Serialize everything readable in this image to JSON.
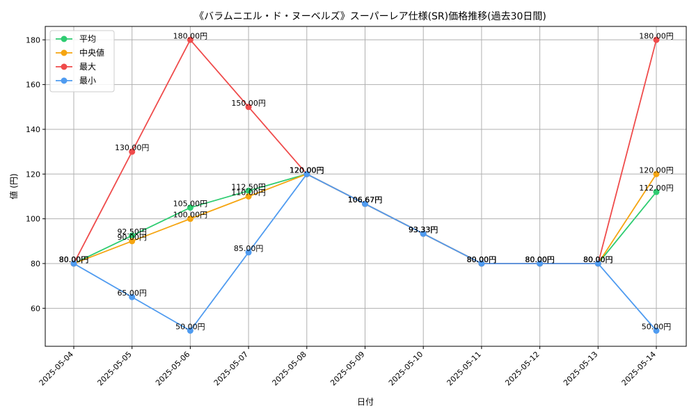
{
  "chart_data": {
    "type": "line",
    "title": "《バラムニエル・ド・ヌーベルズ》スーパーレア仕様(SR)価格推移(過去30日間)",
    "xlabel": "日付",
    "ylabel": "値 (円)",
    "ylim": [
      43,
      186
    ],
    "yticks": [
      60,
      80,
      100,
      120,
      140,
      160,
      180
    ],
    "grid": true,
    "legend_position": "top-left",
    "value_suffix": "円",
    "categories": [
      "2025-05-04",
      "2025-05-05",
      "2025-05-06",
      "2025-05-07",
      "2025-05-08",
      "2025-05-09",
      "2025-05-10",
      "2025-05-11",
      "2025-05-12",
      "2025-05-13",
      "2025-05-14"
    ],
    "series": [
      {
        "name": "平均",
        "color": "#2ecc71",
        "values": [
          80,
          92.5,
          105,
          112.5,
          120,
          106.67,
          93.33,
          80,
          80,
          80,
          112
        ]
      },
      {
        "name": "中央値",
        "color": "#f5a511",
        "values": [
          80,
          90,
          100,
          110,
          120,
          106.67,
          93.33,
          80,
          80,
          80,
          120
        ]
      },
      {
        "name": "最大",
        "color": "#ef4b4b",
        "values": [
          80,
          130,
          180,
          150,
          120,
          106.67,
          93.33,
          80,
          80,
          80,
          180
        ]
      },
      {
        "name": "最小",
        "color": "#4f9bf0",
        "values": [
          80,
          65,
          50,
          85,
          120,
          106.67,
          93.33,
          80,
          80,
          80,
          50
        ]
      }
    ]
  }
}
